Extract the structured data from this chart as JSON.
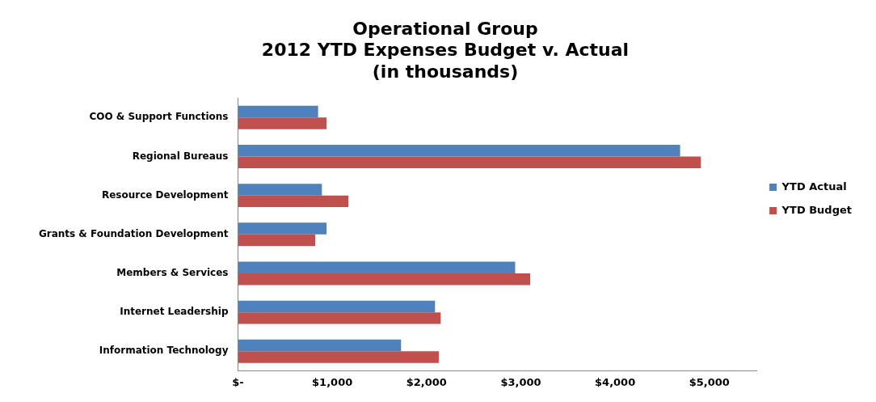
{
  "chart_data": {
    "type": "bar",
    "orientation": "horizontal",
    "title": "Operational Group\n2012 YTD Expenses Budget v. Actual\n(in thousands)",
    "categories": [
      "COO & Support Functions",
      "Regional Bureaus",
      "Resource Development",
      "Grants & Foundation Development",
      "Members & Services",
      "Internet Leadership",
      "Information Technology"
    ],
    "series": [
      {
        "name": "YTD Actual",
        "color": "#4f81bd",
        "values": [
          850,
          4690,
          890,
          940,
          2940,
          2090,
          1730
        ]
      },
      {
        "name": "YTD Budget",
        "color": "#c0504d",
        "values": [
          940,
          4910,
          1170,
          820,
          3100,
          2150,
          2130
        ]
      }
    ],
    "xlim": [
      0,
      5500
    ],
    "xticks": [
      {
        "value": 0,
        "label": "$-"
      },
      {
        "value": 1000,
        "label": "$1,000"
      },
      {
        "value": 2000,
        "label": "$2,000"
      },
      {
        "value": 3000,
        "label": "$3,000"
      },
      {
        "value": 4000,
        "label": "$4,000"
      },
      {
        "value": 5000,
        "label": "$5,000"
      }
    ],
    "grid": false,
    "legend": "right"
  }
}
